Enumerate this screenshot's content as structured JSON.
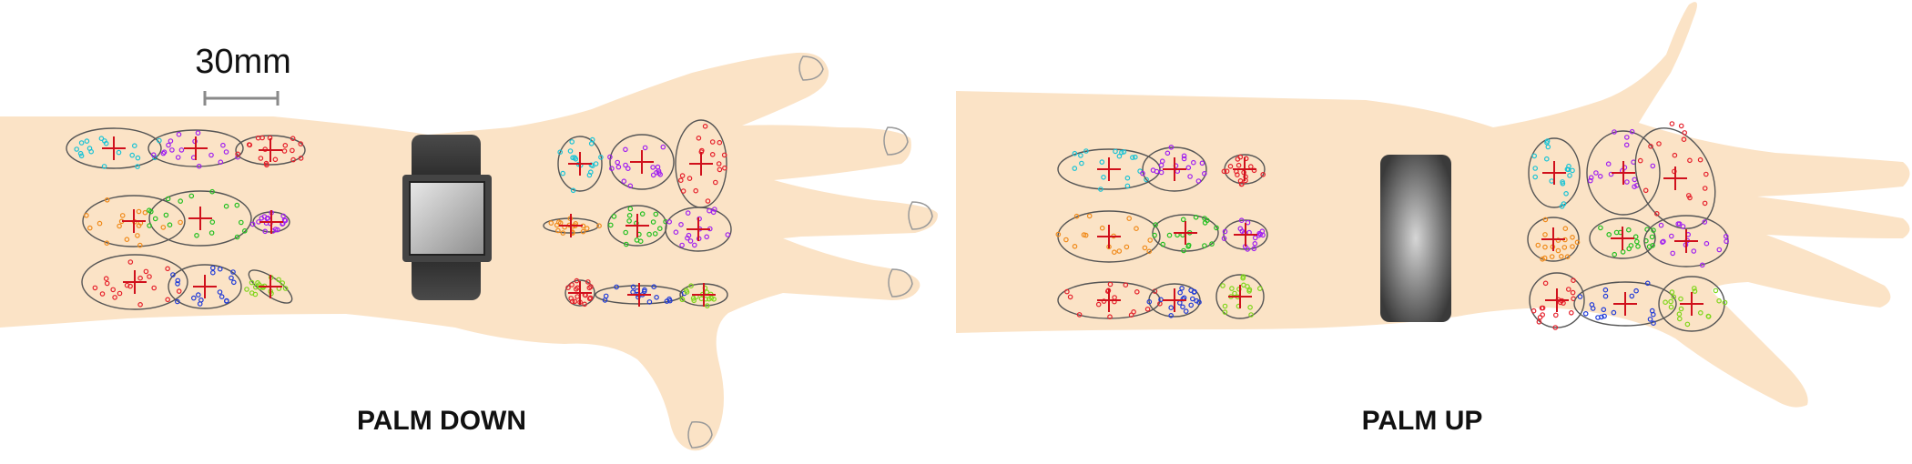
{
  "scale_bar": {
    "label": "30mm"
  },
  "panels": [
    {
      "id": "palm-down",
      "title": "PALM DOWN"
    },
    {
      "id": "palm-up",
      "title": "PALM UP"
    }
  ],
  "colors": {
    "skin": "#fbe3c6",
    "ellipse_stroke": "#555555",
    "crosshair": "#d0101c",
    "scale_bar": "#8a8a8a",
    "series": [
      "#19c3d6",
      "#a020f0",
      "#e5202b",
      "#f08a1a",
      "#22c020",
      "#1f3ad8",
      "#7fd61a"
    ]
  },
  "watch_style": {
    "palm_down": "square-face-black-band",
    "palm_up": "black-band"
  }
}
